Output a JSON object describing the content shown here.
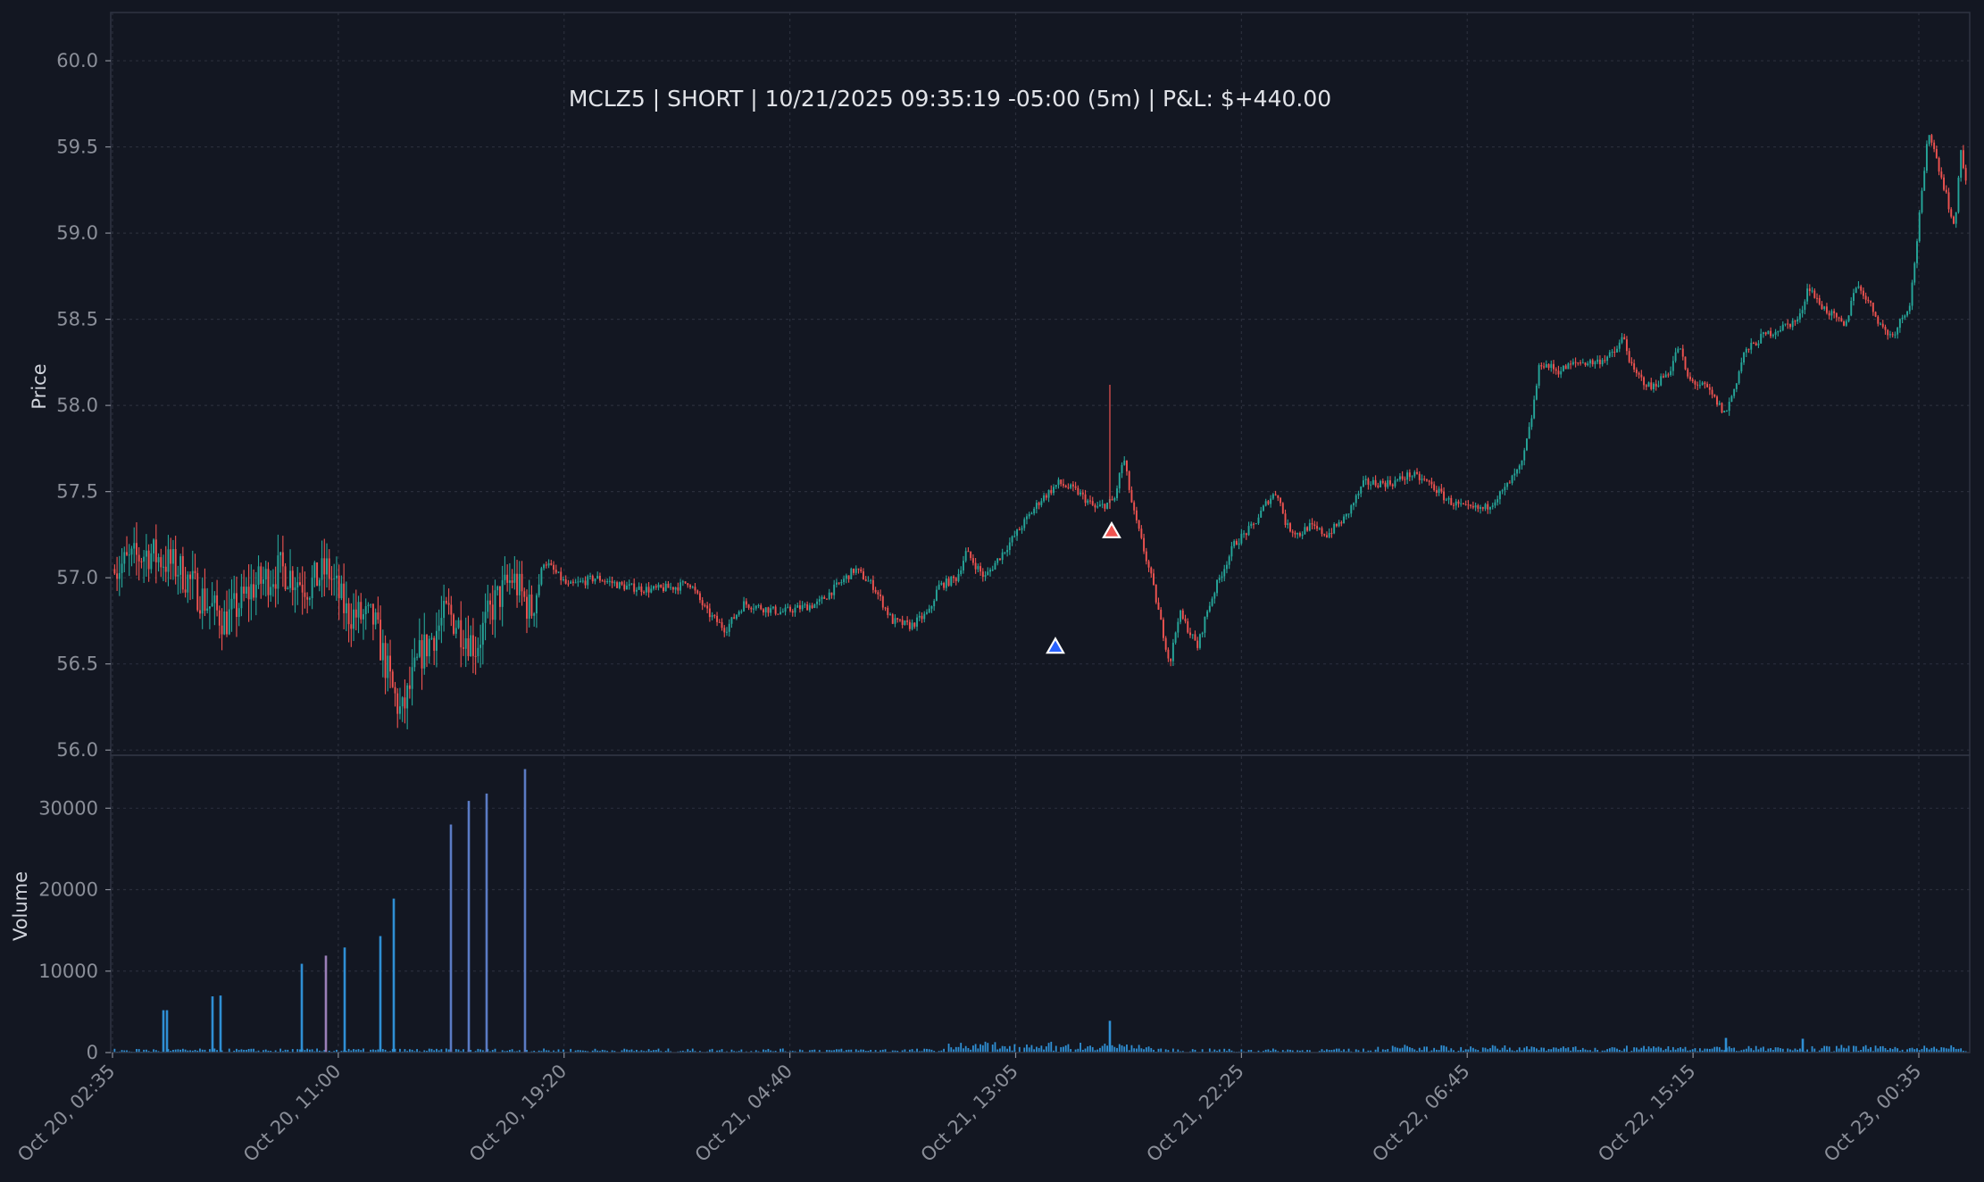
{
  "chart_data": {
    "type": "candlestick",
    "title": "MCLZ5 | SHORT | 10/21/2025 09:35:19 -05:00 (5m) | P&L: $+440.00",
    "symbol": "MCLZ5",
    "side": "SHORT",
    "timeframe": "5m",
    "pnl": "$+440.00",
    "price_axis": {
      "label": "Price",
      "ylim": [
        55.97,
        60.28
      ],
      "ticks": [
        56.0,
        56.5,
        57.0,
        57.5,
        58.0,
        58.5,
        59.0,
        59.5,
        60.0
      ],
      "tick_labels": [
        "56.0",
        "56.5",
        "57.0",
        "57.5",
        "58.0",
        "58.5",
        "59.0",
        "59.5",
        "60.0"
      ]
    },
    "volume_axis": {
      "label": "Volume",
      "ylim": [
        0,
        36500
      ],
      "ticks": [
        0,
        10000,
        20000,
        30000
      ],
      "tick_labels": [
        "0",
        "10000",
        "20000",
        "30000"
      ]
    },
    "x_axis": {
      "ticks": [
        "Oct 20, 02:35",
        "Oct 20, 11:00",
        "Oct 20, 19:20",
        "Oct 21, 04:40",
        "Oct 21, 13:05",
        "Oct 21, 22:25",
        "Oct 22, 06:45",
        "Oct 22, 15:15",
        "Oct 23, 00:35"
      ]
    },
    "grid": true,
    "colors": {
      "background": "#131722",
      "up": "#26a69a",
      "down": "#ef5350",
      "volume": "#2f8fd4",
      "volume_alt": "#5b7bc4",
      "volume_pink": "#9b7fb8",
      "entry_marker": "#2962ff",
      "exit_marker": "#ef5350"
    },
    "price_path_anchors": [
      [
        0,
        57.05
      ],
      [
        0.018,
        57.15
      ],
      [
        0.035,
        57.05
      ],
      [
        0.05,
        56.85
      ],
      [
        0.06,
        56.75
      ],
      [
        0.075,
        56.95
      ],
      [
        0.09,
        57.05
      ],
      [
        0.105,
        56.95
      ],
      [
        0.115,
        57.05
      ],
      [
        0.125,
        56.8
      ],
      [
        0.14,
        56.75
      ],
      [
        0.15,
        56.35
      ],
      [
        0.155,
        56.2
      ],
      [
        0.165,
        56.55
      ],
      [
        0.18,
        56.8
      ],
      [
        0.195,
        56.6
      ],
      [
        0.205,
        56.85
      ],
      [
        0.215,
        57.0
      ],
      [
        0.225,
        56.8
      ],
      [
        0.232,
        57.1
      ],
      [
        0.245,
        56.95
      ],
      [
        0.26,
        57.0
      ],
      [
        0.275,
        56.95
      ],
      [
        0.29,
        56.93
      ],
      [
        0.305,
        56.95
      ],
      [
        0.31,
        56.98
      ],
      [
        0.32,
        56.8
      ],
      [
        0.33,
        56.7
      ],
      [
        0.34,
        56.85
      ],
      [
        0.36,
        56.8
      ],
      [
        0.38,
        56.85
      ],
      [
        0.39,
        56.95
      ],
      [
        0.4,
        57.05
      ],
      [
        0.41,
        56.95
      ],
      [
        0.42,
        56.75
      ],
      [
        0.43,
        56.72
      ],
      [
        0.44,
        56.8
      ],
      [
        0.445,
        56.95
      ],
      [
        0.455,
        57.0
      ],
      [
        0.46,
        57.15
      ],
      [
        0.47,
        57.0
      ],
      [
        0.48,
        57.15
      ],
      [
        0.49,
        57.3
      ],
      [
        0.5,
        57.45
      ],
      [
        0.51,
        57.55
      ],
      [
        0.52,
        57.5
      ],
      [
        0.53,
        57.4
      ],
      [
        0.54,
        57.45
      ],
      [
        0.545,
        57.7
      ],
      [
        0.55,
        57.4
      ],
      [
        0.555,
        57.2
      ],
      [
        0.56,
        57.0
      ],
      [
        0.565,
        56.75
      ],
      [
        0.57,
        56.5
      ],
      [
        0.575,
        56.8
      ],
      [
        0.58,
        56.7
      ],
      [
        0.585,
        56.6
      ],
      [
        0.59,
        56.8
      ],
      [
        0.595,
        56.95
      ],
      [
        0.605,
        57.2
      ],
      [
        0.615,
        57.3
      ],
      [
        0.623,
        57.45
      ],
      [
        0.628,
        57.5
      ],
      [
        0.633,
        57.3
      ],
      [
        0.64,
        57.25
      ],
      [
        0.645,
        57.3
      ],
      [
        0.655,
        57.25
      ],
      [
        0.665,
        57.35
      ],
      [
        0.675,
        57.55
      ],
      [
        0.69,
        57.55
      ],
      [
        0.7,
        57.6
      ],
      [
        0.71,
        57.55
      ],
      [
        0.72,
        57.45
      ],
      [
        0.73,
        57.4
      ],
      [
        0.74,
        57.4
      ],
      [
        0.745,
        57.45
      ],
      [
        0.75,
        57.5
      ],
      [
        0.76,
        57.65
      ],
      [
        0.765,
        57.9
      ],
      [
        0.77,
        58.25
      ],
      [
        0.78,
        58.2
      ],
      [
        0.79,
        58.25
      ],
      [
        0.8,
        58.25
      ],
      [
        0.81,
        58.3
      ],
      [
        0.815,
        58.4
      ],
      [
        0.82,
        58.2
      ],
      [
        0.83,
        58.1
      ],
      [
        0.84,
        58.2
      ],
      [
        0.845,
        58.35
      ],
      [
        0.85,
        58.15
      ],
      [
        0.86,
        58.1
      ],
      [
        0.87,
        57.95
      ],
      [
        0.875,
        58.1
      ],
      [
        0.88,
        58.3
      ],
      [
        0.89,
        58.4
      ],
      [
        0.9,
        58.45
      ],
      [
        0.91,
        58.5
      ],
      [
        0.915,
        58.7
      ],
      [
        0.92,
        58.6
      ],
      [
        0.93,
        58.5
      ],
      [
        0.935,
        58.45
      ],
      [
        0.94,
        58.7
      ],
      [
        0.945,
        58.65
      ],
      [
        0.95,
        58.55
      ],
      [
        0.955,
        58.45
      ],
      [
        0.96,
        58.4
      ],
      [
        0.965,
        58.5
      ],
      [
        0.97,
        58.6
      ],
      [
        0.975,
        59.1
      ],
      [
        0.98,
        59.6
      ],
      [
        0.985,
        59.4
      ],
      [
        0.99,
        59.2
      ],
      [
        0.994,
        59.0
      ],
      [
        0.997,
        59.5
      ],
      [
        1.0,
        59.3
      ]
    ],
    "post_anchors_note": "",
    "entry": {
      "time": "Oct 21, 13:05",
      "price": 56.6,
      "marker": "entry"
    },
    "exit": {
      "time": "Oct 21, 15:25",
      "price": 57.27,
      "marker": "exit"
    }
  }
}
